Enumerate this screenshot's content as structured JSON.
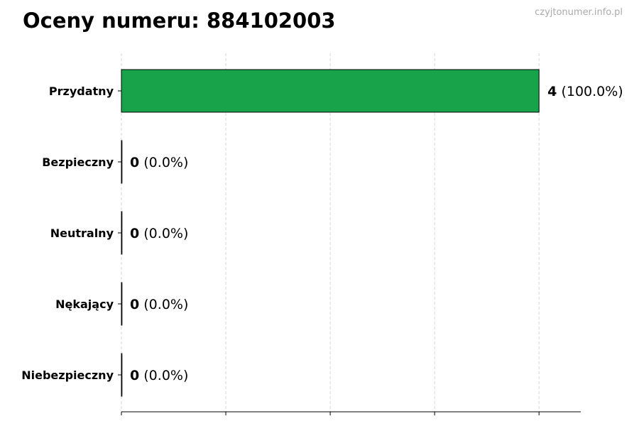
{
  "title": "Oceny numeru: 884102003",
  "watermark": "czyjtonumer.info.pl",
  "chart_data": {
    "type": "bar",
    "orientation": "horizontal",
    "categories": [
      "Przydatny",
      "Bezpieczny",
      "Neutralny",
      "Nękający",
      "Niebezpieczny"
    ],
    "values": [
      4,
      0,
      0,
      0,
      0
    ],
    "percent_labels": [
      "(100.0%)",
      "(0.0%)",
      "(0.0%)",
      "(0.0%)",
      "(0.0%)"
    ],
    "xlim": [
      0,
      4.4
    ],
    "xticks": [
      0,
      1,
      2,
      3,
      4
    ],
    "grid": "x-dashed",
    "bar_color": "#18a34a",
    "title": "Oceny numeru: 884102003"
  }
}
